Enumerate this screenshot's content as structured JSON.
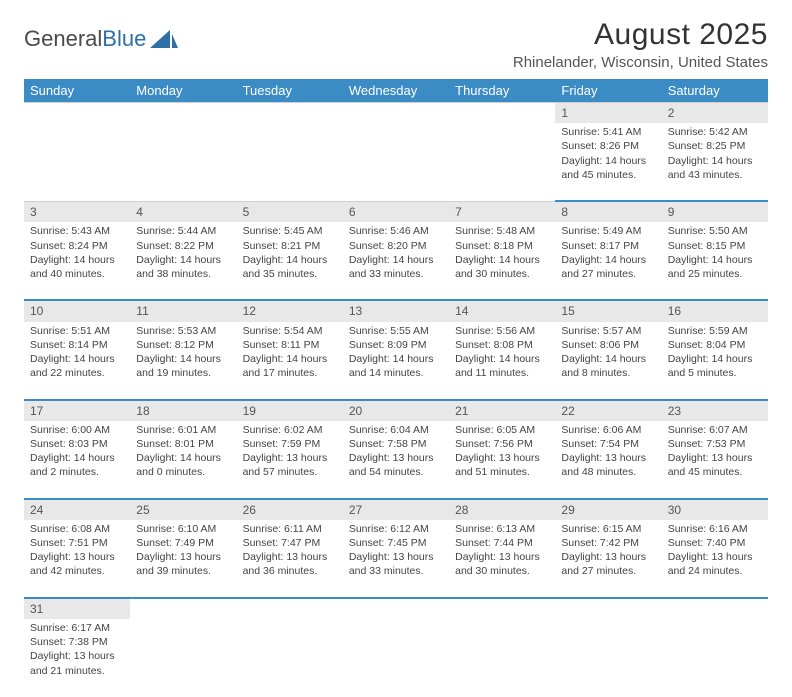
{
  "logo": {
    "text1": "General",
    "text2": "Blue",
    "color1": "#4a4a4a",
    "color2": "#2f6fa7",
    "shape_color": "#2f6fa7"
  },
  "title": "August 2025",
  "location": "Rhinelander, Wisconsin, United States",
  "theme": {
    "header_bg": "#3b8bc4",
    "header_fg": "#ffffff",
    "daynum_bg": "#e8e8e8",
    "rule_color": "#3b8bc4"
  },
  "weekdays": [
    "Sunday",
    "Monday",
    "Tuesday",
    "Wednesday",
    "Thursday",
    "Friday",
    "Saturday"
  ],
  "weeks": [
    [
      null,
      null,
      null,
      null,
      null,
      {
        "n": "1",
        "sr": "5:41 AM",
        "ss": "8:26 PM",
        "dh": "14",
        "dm": "45"
      },
      {
        "n": "2",
        "sr": "5:42 AM",
        "ss": "8:25 PM",
        "dh": "14",
        "dm": "43"
      }
    ],
    [
      {
        "n": "3",
        "sr": "5:43 AM",
        "ss": "8:24 PM",
        "dh": "14",
        "dm": "40"
      },
      {
        "n": "4",
        "sr": "5:44 AM",
        "ss": "8:22 PM",
        "dh": "14",
        "dm": "38"
      },
      {
        "n": "5",
        "sr": "5:45 AM",
        "ss": "8:21 PM",
        "dh": "14",
        "dm": "35"
      },
      {
        "n": "6",
        "sr": "5:46 AM",
        "ss": "8:20 PM",
        "dh": "14",
        "dm": "33"
      },
      {
        "n": "7",
        "sr": "5:48 AM",
        "ss": "8:18 PM",
        "dh": "14",
        "dm": "30"
      },
      {
        "n": "8",
        "sr": "5:49 AM",
        "ss": "8:17 PM",
        "dh": "14",
        "dm": "27"
      },
      {
        "n": "9",
        "sr": "5:50 AM",
        "ss": "8:15 PM",
        "dh": "14",
        "dm": "25"
      }
    ],
    [
      {
        "n": "10",
        "sr": "5:51 AM",
        "ss": "8:14 PM",
        "dh": "14",
        "dm": "22"
      },
      {
        "n": "11",
        "sr": "5:53 AM",
        "ss": "8:12 PM",
        "dh": "14",
        "dm": "19"
      },
      {
        "n": "12",
        "sr": "5:54 AM",
        "ss": "8:11 PM",
        "dh": "14",
        "dm": "17"
      },
      {
        "n": "13",
        "sr": "5:55 AM",
        "ss": "8:09 PM",
        "dh": "14",
        "dm": "14"
      },
      {
        "n": "14",
        "sr": "5:56 AM",
        "ss": "8:08 PM",
        "dh": "14",
        "dm": "11"
      },
      {
        "n": "15",
        "sr": "5:57 AM",
        "ss": "8:06 PM",
        "dh": "14",
        "dm": "8"
      },
      {
        "n": "16",
        "sr": "5:59 AM",
        "ss": "8:04 PM",
        "dh": "14",
        "dm": "5"
      }
    ],
    [
      {
        "n": "17",
        "sr": "6:00 AM",
        "ss": "8:03 PM",
        "dh": "14",
        "dm": "2"
      },
      {
        "n": "18",
        "sr": "6:01 AM",
        "ss": "8:01 PM",
        "dh": "14",
        "dm": "0"
      },
      {
        "n": "19",
        "sr": "6:02 AM",
        "ss": "7:59 PM",
        "dh": "13",
        "dm": "57"
      },
      {
        "n": "20",
        "sr": "6:04 AM",
        "ss": "7:58 PM",
        "dh": "13",
        "dm": "54"
      },
      {
        "n": "21",
        "sr": "6:05 AM",
        "ss": "7:56 PM",
        "dh": "13",
        "dm": "51"
      },
      {
        "n": "22",
        "sr": "6:06 AM",
        "ss": "7:54 PM",
        "dh": "13",
        "dm": "48"
      },
      {
        "n": "23",
        "sr": "6:07 AM",
        "ss": "7:53 PM",
        "dh": "13",
        "dm": "45"
      }
    ],
    [
      {
        "n": "24",
        "sr": "6:08 AM",
        "ss": "7:51 PM",
        "dh": "13",
        "dm": "42"
      },
      {
        "n": "25",
        "sr": "6:10 AM",
        "ss": "7:49 PM",
        "dh": "13",
        "dm": "39"
      },
      {
        "n": "26",
        "sr": "6:11 AM",
        "ss": "7:47 PM",
        "dh": "13",
        "dm": "36"
      },
      {
        "n": "27",
        "sr": "6:12 AM",
        "ss": "7:45 PM",
        "dh": "13",
        "dm": "33"
      },
      {
        "n": "28",
        "sr": "6:13 AM",
        "ss": "7:44 PM",
        "dh": "13",
        "dm": "30"
      },
      {
        "n": "29",
        "sr": "6:15 AM",
        "ss": "7:42 PM",
        "dh": "13",
        "dm": "27"
      },
      {
        "n": "30",
        "sr": "6:16 AM",
        "ss": "7:40 PM",
        "dh": "13",
        "dm": "24"
      }
    ],
    [
      {
        "n": "31",
        "sr": "6:17 AM",
        "ss": "7:38 PM",
        "dh": "13",
        "dm": "21"
      },
      null,
      null,
      null,
      null,
      null,
      null
    ]
  ],
  "labels": {
    "sunrise": "Sunrise:",
    "sunset": "Sunset:",
    "daylight": "Daylight:",
    "hours": "hours",
    "and": "and",
    "minutes": "minutes."
  }
}
